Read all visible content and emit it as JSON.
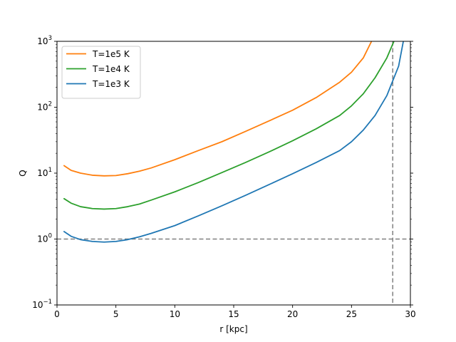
{
  "chart_data": {
    "type": "line",
    "xlabel": "r [kpc]",
    "ylabel": "Q",
    "xlim": [
      0,
      30
    ],
    "ylim": [
      0.1,
      1000
    ],
    "yscale": "log",
    "x_ticks": [
      0,
      5,
      10,
      15,
      20,
      25,
      30
    ],
    "y_ticks": [
      {
        "value": 0.1,
        "base": "10",
        "exp": "−1"
      },
      {
        "value": 1,
        "base": "10",
        "exp": "0"
      },
      {
        "value": 10,
        "base": "10",
        "exp": "1"
      },
      {
        "value": 100,
        "base": "10",
        "exp": "2"
      },
      {
        "value": 1000,
        "base": "10",
        "exp": "3"
      }
    ],
    "grid": false,
    "legend_position": "top-left",
    "reference_lines": [
      {
        "orientation": "horizontal",
        "value": 1,
        "style": "dashed",
        "color": "#808080"
      },
      {
        "orientation": "vertical",
        "value": 28.5,
        "style": "dashed",
        "color": "#808080"
      }
    ],
    "series": [
      {
        "name": "T=1e5 K",
        "color": "#ff7f0e",
        "x": [
          0.6,
          1.2,
          2,
          3,
          4,
          5,
          6,
          7,
          8,
          10,
          12,
          14,
          16,
          18,
          20,
          22,
          24,
          25,
          26,
          26.7
        ],
        "y": [
          13,
          11,
          10,
          9.3,
          9.1,
          9.2,
          9.8,
          10.7,
          12,
          16,
          22,
          30,
          43,
          62,
          90,
          140,
          240,
          340,
          560,
          1000
        ]
      },
      {
        "name": "T=1e4 K",
        "color": "#2ca02c",
        "x": [
          0.6,
          1.2,
          2,
          3,
          4,
          5,
          6,
          7,
          8,
          10,
          12,
          14,
          16,
          18,
          20,
          22,
          24,
          25,
          26,
          27,
          28,
          28.6
        ],
        "y": [
          4.1,
          3.5,
          3.1,
          2.9,
          2.85,
          2.9,
          3.1,
          3.4,
          3.9,
          5.2,
          7.2,
          10.2,
          14.5,
          21,
          31,
          47,
          75,
          105,
          160,
          280,
          560,
          1000
        ]
      },
      {
        "name": "T=1e3 K",
        "color": "#1f77b4",
        "x": [
          0.6,
          1.2,
          2,
          3,
          4,
          5,
          6,
          7,
          8,
          10,
          12,
          14,
          16,
          18,
          20,
          22,
          24,
          25,
          26,
          27,
          28,
          29,
          29.4
        ],
        "y": [
          1.3,
          1.1,
          0.98,
          0.92,
          0.9,
          0.92,
          0.98,
          1.08,
          1.22,
          1.6,
          2.25,
          3.2,
          4.6,
          6.7,
          9.8,
          14.5,
          22,
          30,
          45,
          75,
          150,
          420,
          1000
        ]
      }
    ]
  }
}
